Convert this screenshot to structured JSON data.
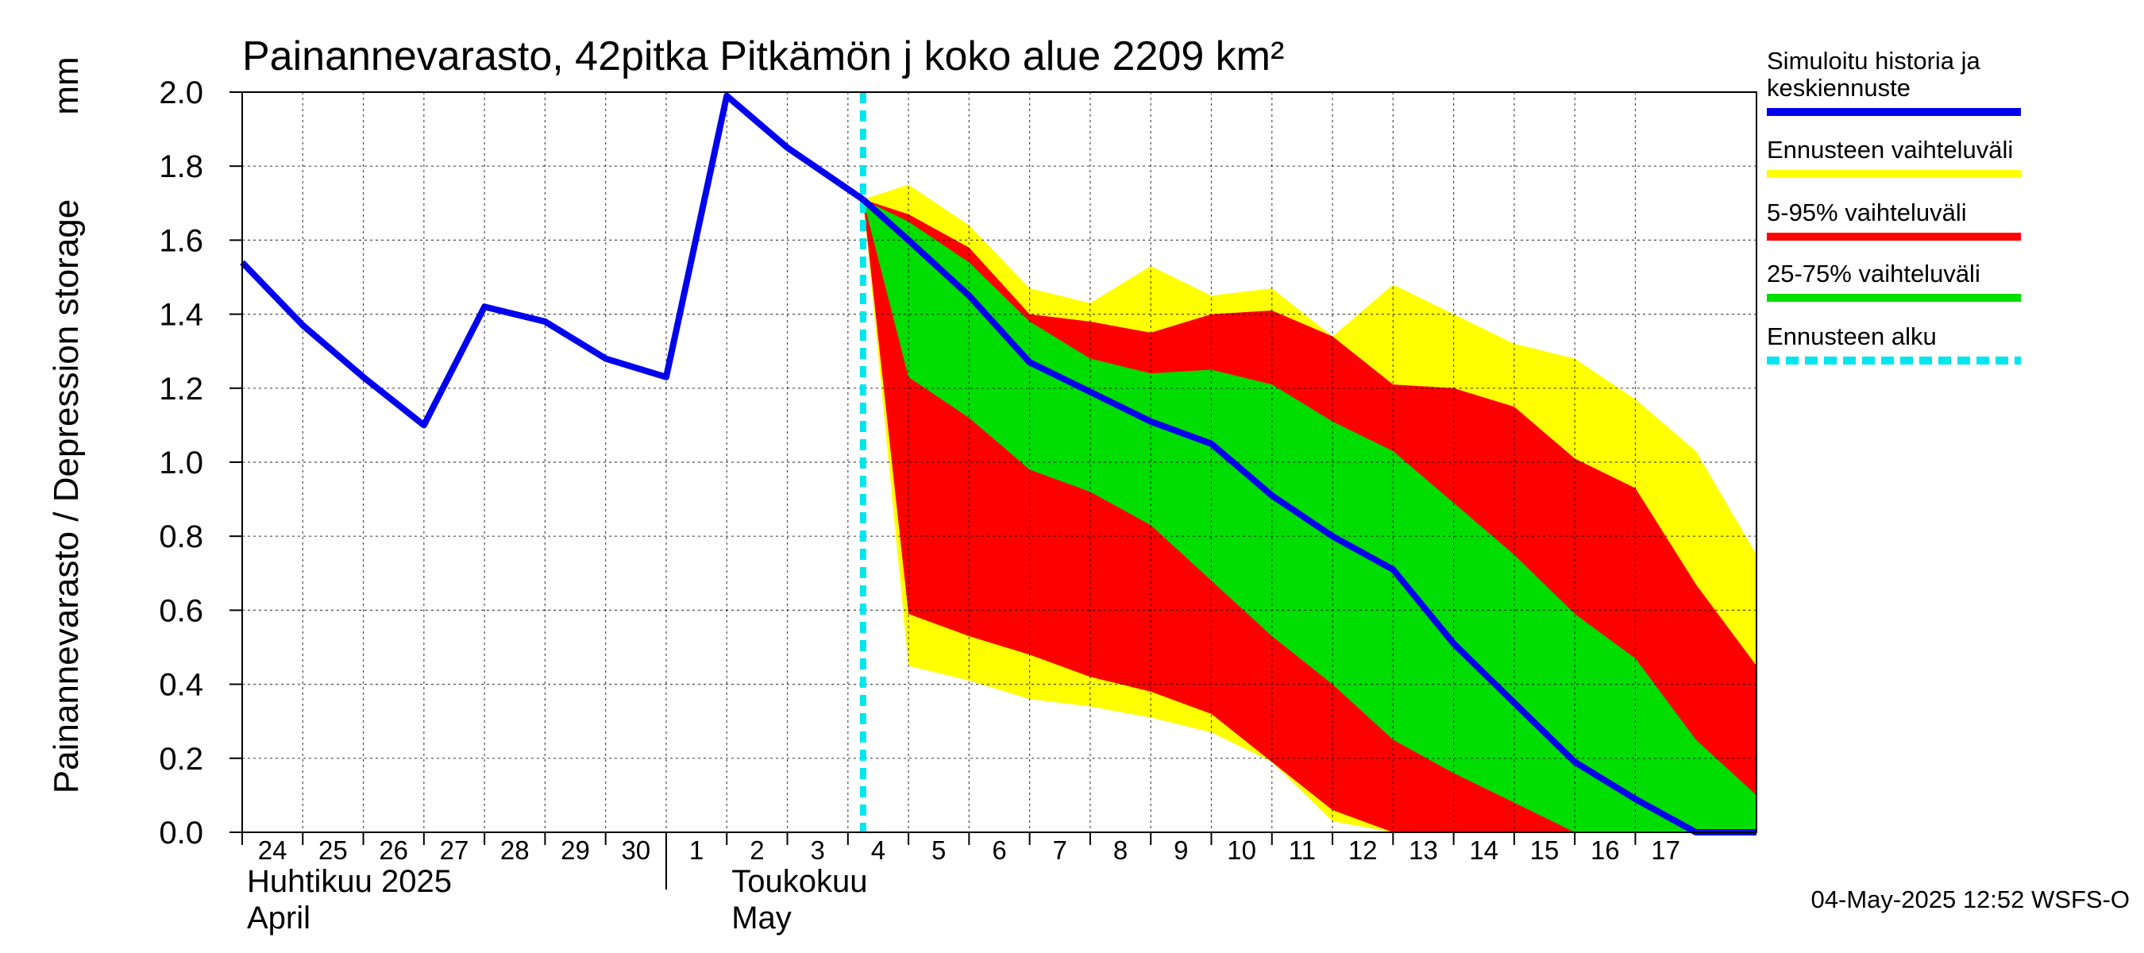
{
  "chart_data": {
    "type": "area",
    "title": "Painannevarasto, 42pitka Pitkämön j koko alue 2209 km²",
    "ylabel": "Painannevarasto / Depression storage",
    "yunit": "mm",
    "ylim": [
      0,
      2.0
    ],
    "yticks": [
      "0.0",
      "0.2",
      "0.4",
      "0.6",
      "0.8",
      "1.0",
      "1.2",
      "1.4",
      "1.6",
      "1.8",
      "2.0"
    ],
    "ytick_values": [
      0,
      0.2,
      0.4,
      0.6,
      0.8,
      1.0,
      1.2,
      1.4,
      1.6,
      1.8,
      2.0
    ],
    "x_range": [
      -0.5,
      24.5
    ],
    "day_labels": [
      "24",
      "25",
      "26",
      "27",
      "28",
      "29",
      "30",
      "1",
      "2",
      "3",
      "4",
      "5",
      "6",
      "7",
      "8",
      "9",
      "10",
      "11",
      "12",
      "13",
      "14",
      "15",
      "16",
      "17"
    ],
    "month_labels": [
      {
        "line1": "Huhtikuu  2025",
        "line2": "April",
        "at": -0.5
      },
      {
        "line1": "Toukokuu",
        "line2": "May",
        "at": 7.5
      }
    ],
    "month_separator_at": 6.5,
    "forecast_start_x": 9.75,
    "history": {
      "name": "Simuloitu historia ja keskiennuste",
      "x": [
        -0.5,
        0.5,
        1.5,
        2.5,
        3.5,
        4.5,
        5.5,
        6.5,
        7.5,
        8.5,
        9.75
      ],
      "y": [
        1.54,
        1.37,
        1.23,
        1.1,
        1.42,
        1.38,
        1.28,
        1.23,
        1.99,
        1.85,
        1.71
      ]
    },
    "forecast_x": [
      9.75,
      10.5,
      11.5,
      12.5,
      13.5,
      14.5,
      15.5,
      16.5,
      17.5,
      18.5,
      19.5,
      20.5,
      21.5,
      22.5,
      23.5,
      24.5
    ],
    "median": [
      1.71,
      1.6,
      1.45,
      1.27,
      1.19,
      1.11,
      1.05,
      0.91,
      0.8,
      0.71,
      0.51,
      0.35,
      0.19,
      0.09,
      0.0,
      0.0
    ],
    "bands": [
      {
        "name": "Ennusteen vaihteluväli",
        "color": "#ffff00",
        "upper": [
          1.71,
          1.75,
          1.64,
          1.47,
          1.43,
          1.53,
          1.45,
          1.47,
          1.34,
          1.48,
          1.4,
          1.32,
          1.28,
          1.17,
          1.03,
          0.75
        ],
        "lower": [
          1.71,
          0.45,
          0.41,
          0.36,
          0.34,
          0.31,
          0.27,
          0.19,
          0.03,
          0.0,
          0.0,
          0.0,
          0.0,
          0.0,
          0.0,
          0.0
        ]
      },
      {
        "name": "5-95% vaihteluväli",
        "color": "#ff0000",
        "upper": [
          1.71,
          1.67,
          1.58,
          1.4,
          1.38,
          1.35,
          1.4,
          1.41,
          1.34,
          1.21,
          1.2,
          1.15,
          1.01,
          0.93,
          0.67,
          0.45
        ],
        "lower": [
          1.71,
          0.59,
          0.53,
          0.48,
          0.42,
          0.38,
          0.32,
          0.19,
          0.06,
          0.0,
          0.0,
          0.0,
          0.0,
          0.0,
          0.0,
          0.0
        ]
      },
      {
        "name": "25-75% vaihteluväli",
        "color": "#00dd00",
        "upper": [
          1.71,
          1.65,
          1.54,
          1.38,
          1.28,
          1.24,
          1.25,
          1.21,
          1.11,
          1.03,
          0.89,
          0.75,
          0.59,
          0.47,
          0.25,
          0.1
        ],
        "lower": [
          1.71,
          1.23,
          1.12,
          0.98,
          0.92,
          0.83,
          0.68,
          0.53,
          0.4,
          0.25,
          0.16,
          0.08,
          0.0,
          0.0,
          0.0,
          0.0
        ]
      }
    ],
    "legend": [
      {
        "label": "Simuloitu historia ja keskiennuste",
        "color": "#0000ee",
        "style": "solid"
      },
      {
        "label": "Ennusteen vaihteluväli",
        "color": "#ffff00",
        "style": "solid"
      },
      {
        "label": "5-95% vaihteluväli",
        "color": "#ff0000",
        "style": "solid"
      },
      {
        "label": "25-75% vaihteluväli",
        "color": "#00dd00",
        "style": "solid"
      },
      {
        "label": "Ennusteen alku",
        "color": "#00e5ee",
        "style": "dashed"
      }
    ],
    "footer": "04-May-2025 12:52 WSFS-O"
  }
}
